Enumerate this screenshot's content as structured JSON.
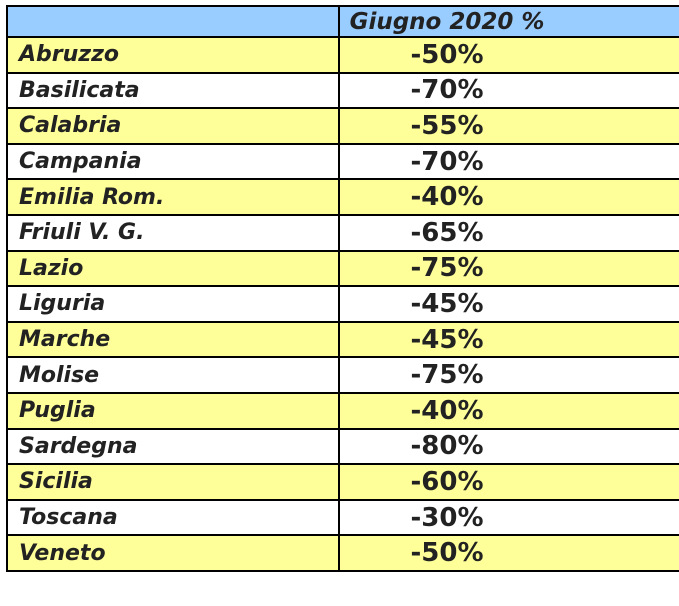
{
  "header": {
    "region_label": "",
    "value_label": "Giugno 2020 %"
  },
  "colors": {
    "header_bg": "#99ccff",
    "stripe_bg": "#ffff99",
    "alt_bg": "#ffffff"
  },
  "rows": [
    {
      "region": "Abruzzo",
      "value": "-50%"
    },
    {
      "region": "Basilicata",
      "value": "-70%"
    },
    {
      "region": "Calabria",
      "value": "-55%"
    },
    {
      "region": "Campania",
      "value": "-70%"
    },
    {
      "region": "Emilia Rom.",
      "value": "-40%"
    },
    {
      "region": "Friuli V. G.",
      "value": "-65%"
    },
    {
      "region": "Lazio",
      "value": "-75%"
    },
    {
      "region": "Liguria",
      "value": "-45%"
    },
    {
      "region": "Marche",
      "value": "-45%"
    },
    {
      "region": "Molise",
      "value": "-75%"
    },
    {
      "region": "Puglia",
      "value": "-40%"
    },
    {
      "region": "Sardegna",
      "value": "-80%"
    },
    {
      "region": "Sicilia",
      "value": "-60%"
    },
    {
      "region": "Toscana",
      "value": "-30%"
    },
    {
      "region": "Veneto",
      "value": "-50%"
    }
  ]
}
